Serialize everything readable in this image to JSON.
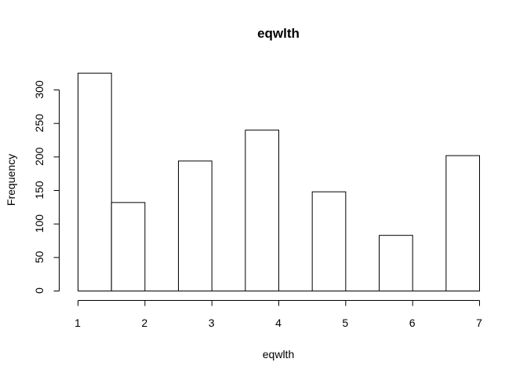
{
  "chart_data": {
    "type": "bar",
    "title": "eqwlth",
    "xlabel": "eqwlth",
    "ylabel": "Frequency",
    "xlim": [
      1,
      7
    ],
    "ylim": [
      0,
      325
    ],
    "x_ticks": [
      1,
      2,
      3,
      4,
      5,
      6,
      7
    ],
    "y_ticks": [
      0,
      50,
      100,
      150,
      200,
      250,
      300
    ],
    "bins": [
      {
        "x0": 1.0,
        "x1": 1.5,
        "value": 325
      },
      {
        "x0": 1.5,
        "x1": 2.0,
        "value": 132
      },
      {
        "x0": 2.0,
        "x1": 2.5,
        "value": 0
      },
      {
        "x0": 2.5,
        "x1": 3.0,
        "value": 194
      },
      {
        "x0": 3.0,
        "x1": 3.5,
        "value": 0
      },
      {
        "x0": 3.5,
        "x1": 4.0,
        "value": 240
      },
      {
        "x0": 4.0,
        "x1": 4.5,
        "value": 0
      },
      {
        "x0": 4.5,
        "x1": 5.0,
        "value": 148
      },
      {
        "x0": 5.0,
        "x1": 5.5,
        "value": 0
      },
      {
        "x0": 5.5,
        "x1": 6.0,
        "value": 83
      },
      {
        "x0": 6.0,
        "x1": 6.5,
        "value": 0
      },
      {
        "x0": 6.5,
        "x1": 7.0,
        "value": 202
      }
    ],
    "grid": false,
    "legend": "none"
  }
}
